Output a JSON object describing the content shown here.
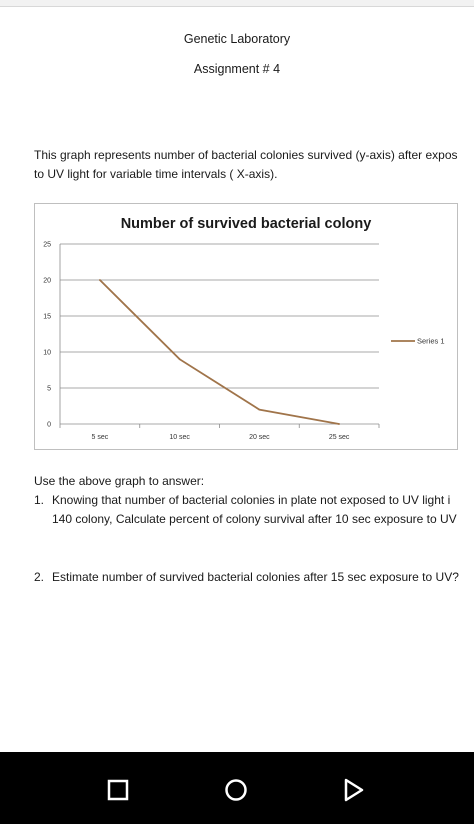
{
  "document": {
    "header": {
      "title": "Genetic Laboratory",
      "subtitle": "Assignment # 4"
    },
    "intro": {
      "line1": "This graph represents number of bacterial colonies survived (y-axis) after expos",
      "line2": "to UV light for variable time intervals ( X-axis)."
    },
    "questions": {
      "lead": "Use the above graph to answer:",
      "q1_num": "1.",
      "q1_line1": "Knowing that number of bacterial colonies in plate not exposed to UV light i",
      "q1_line2": "140 colony, Calculate percent of colony survival after 10 sec exposure to UV",
      "q2_num": "2.",
      "q2_line1": "Estimate number of survived bacterial colonies after 15 sec exposure to UV?"
    }
  },
  "chart_data": {
    "type": "line",
    "title": "Number of survived bacterial colony",
    "categories": [
      "5 sec",
      "10 sec",
      "20 sec",
      "25 sec"
    ],
    "series": [
      {
        "name": "Series 1",
        "values": [
          20,
          9,
          2,
          0
        ],
        "color": "#a0744a"
      }
    ],
    "ylim": [
      0,
      25
    ],
    "yticks": [
      0,
      5,
      10,
      15,
      20,
      25
    ],
    "grid": true,
    "legend": "right"
  },
  "navbar": {
    "recents_icon": "square-icon",
    "home_icon": "circle-icon",
    "back_icon": "triangle-icon"
  }
}
